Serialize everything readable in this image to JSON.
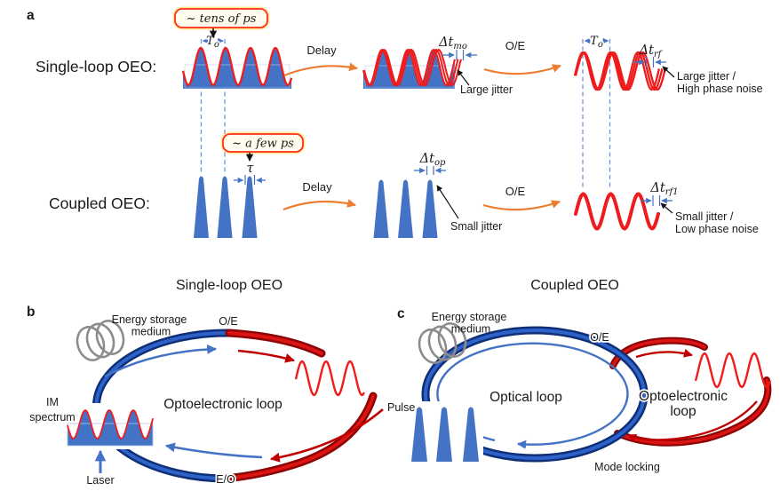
{
  "colors": {
    "wave_fill_blue": "#4472C4",
    "wave_stroke_red": "#EE1C1C",
    "measure_blue": "#4472C4",
    "dashed_blue": "#6B96D9",
    "arrow_orange": "#ED7D31",
    "callout_border": "#FF2D16",
    "callout_glow": "#FFD34D",
    "loop_blue_dark": "#0E2F78",
    "loop_blue_mid": "#2E62C8",
    "loop_red_dark": "#8C0404",
    "loop_red_mid": "#DC1414",
    "coil_gray": "#8C8C8C"
  },
  "panel_a": {
    "tag": "a",
    "row1_label": "Single-loop OEO:",
    "row2_label": "Coupled OEO:",
    "callout_top": "~ tens of ps",
    "callout_bottom": "~ a few ps",
    "t_o": {
      "main": "T",
      "sub": "o"
    },
    "tau": "τ",
    "delay": "Delay",
    "oe": "O/E",
    "dt_mo": {
      "main": "Δt",
      "sub": "mo"
    },
    "dt_rf": {
      "main": "Δt",
      "sub": "rf"
    },
    "dt_op": {
      "main": "Δt",
      "sub": "op"
    },
    "dt_rf1": {
      "main": "Δt",
      "sub": "rf1"
    },
    "large_jitter": "Large jitter",
    "large_jitter_hpn": [
      "Large jitter /",
      "High phase noise"
    ],
    "small_jitter": "Small jitter",
    "small_jitter_lpn": [
      "Small jitter /",
      "Low phase noise"
    ]
  },
  "panel_b": {
    "tag": "b",
    "title": "Single-loop OEO",
    "energy_storage": [
      "Energy storage",
      "medium"
    ],
    "oe": "O/E",
    "eo": "E/O",
    "laser": "Laser",
    "im_spectrum": [
      "IM",
      "spectrum"
    ],
    "loop_label": "Optoelectronic loop"
  },
  "panel_c": {
    "tag": "c",
    "title": "Coupled OEO",
    "energy_storage": [
      "Energy storage",
      "medium"
    ],
    "oe": "O/E",
    "pulse": "Pulse",
    "mode_locking": "Mode locking",
    "optical_loop": "Optical loop",
    "oe_loop": [
      "Optoelectronic",
      "loop"
    ]
  }
}
